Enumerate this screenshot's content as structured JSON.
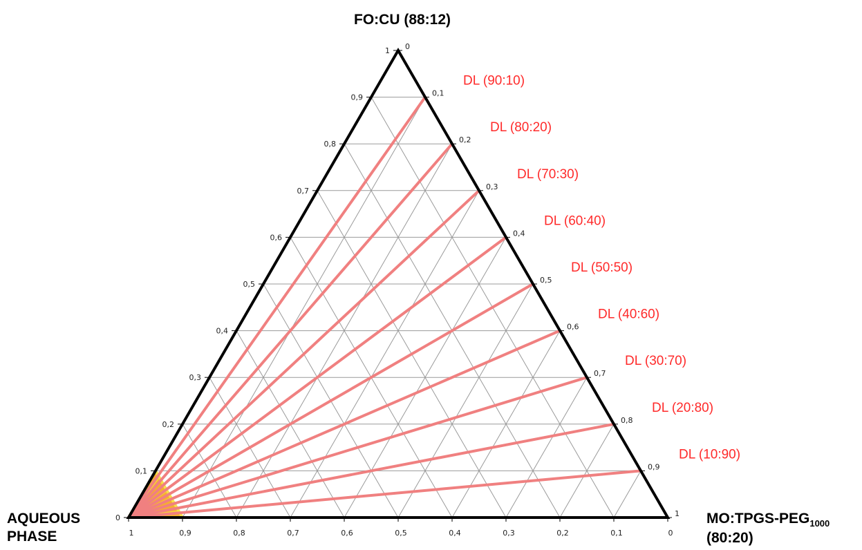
{
  "chart_data": {
    "type": "ternary",
    "vertices": {
      "top": "FO:CU (88:12)",
      "left_line1": "AQUEOUS",
      "left_line2": "PHASE",
      "right_main": "MO:TPGS-PEG",
      "right_sub": "1000",
      "right_line2": "(80:20)"
    },
    "left_axis_ticks": [
      "0",
      "0,1",
      "0,2",
      "0,3",
      "0,4",
      "0,5",
      "0,6",
      "0,7",
      "0,8",
      "0,9",
      "1"
    ],
    "right_axis_ticks": [
      "0",
      "0,1",
      "0,2",
      "0,3",
      "0,4",
      "0,5",
      "0,6",
      "0,7",
      "0,8",
      "0,9",
      "1"
    ],
    "bottom_axis_ticks": [
      "1",
      "0,9",
      "0,8",
      "0,7",
      "0,6",
      "0,5",
      "0,4",
      "0,3",
      "0,2",
      "0,1",
      "0"
    ],
    "grid_step": 0.1,
    "grid": true,
    "dilution_lines": [
      {
        "label": "DL (90:10)",
        "fo_cu": 0.9,
        "mo_tpgs": 0.1
      },
      {
        "label": "DL (80:20)",
        "fo_cu": 0.8,
        "mo_tpgs": 0.2
      },
      {
        "label": "DL (70:30)",
        "fo_cu": 0.7,
        "mo_tpgs": 0.3
      },
      {
        "label": "DL (60:40)",
        "fo_cu": 0.6,
        "mo_tpgs": 0.4
      },
      {
        "label": "DL (50:50)",
        "fo_cu": 0.5,
        "mo_tpgs": 0.5
      },
      {
        "label": "DL (40:60)",
        "fo_cu": 0.4,
        "mo_tpgs": 0.6
      },
      {
        "label": "DL (30:70)",
        "fo_cu": 0.3,
        "mo_tpgs": 0.7
      },
      {
        "label": "DL (20:80)",
        "fo_cu": 0.2,
        "mo_tpgs": 0.8
      },
      {
        "label": "DL (10:90)",
        "fo_cu": 0.1,
        "mo_tpgs": 0.9
      }
    ],
    "shaded_region": {
      "aqueous_min": 0.9,
      "color": "#f5b02e",
      "edge_color": "#f7e04a"
    },
    "colors": {
      "dilution_line": "#f08080",
      "dilution_label": "#ff2a2a",
      "grid": "#9a9a9a",
      "frame": "#000000"
    }
  }
}
